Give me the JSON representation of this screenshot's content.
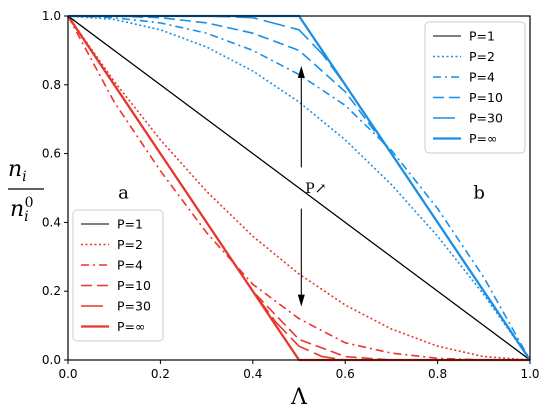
{
  "chart_data": {
    "type": "line",
    "xlabel": "Λ",
    "ylabel_num": "n",
    "ylabel_num_sub": "i",
    "ylabel_den": "n",
    "ylabel_den_sub": "i",
    "ylabel_den_sup": "0",
    "xlim": [
      0,
      1
    ],
    "ylim": [
      0,
      1
    ],
    "x_ticks": [
      "0.0",
      "0.2",
      "0.4",
      "0.6",
      "0.8",
      "1.0"
    ],
    "y_ticks": [
      "0.0",
      "0.2",
      "0.4",
      "0.6",
      "0.8",
      "1.0"
    ],
    "grid": false,
    "panel_labels": [
      "a",
      "b"
    ],
    "annotation": "P↗",
    "colors": {
      "black": "#000000",
      "red": "#e8362b",
      "blue": "#1b8fe6"
    },
    "panels": [
      {
        "id": "a",
        "legend_position": "lower-left",
        "series": [
          {
            "name": "P=1",
            "style": "solid",
            "color": "black",
            "x": [
              0,
              1
            ],
            "y": [
              1,
              0
            ]
          },
          {
            "name": "P=2",
            "style": "dotted",
            "color": "red",
            "x": [
              0,
              0.1,
              0.2,
              0.3,
              0.4,
              0.5,
              0.6,
              0.7,
              0.8,
              0.9,
              1.0
            ],
            "y": [
              1,
              0.81,
              0.64,
              0.49,
              0.36,
              0.25,
              0.16,
              0.09,
              0.04,
              0.01,
              0
            ]
          },
          {
            "name": "P=4",
            "style": "dashdot",
            "color": "red",
            "x": [
              0,
              0.1,
              0.2,
              0.3,
              0.4,
              0.5,
              0.6,
              0.7,
              0.8,
              0.9,
              1.0
            ],
            "y": [
              1,
              0.75,
              0.55,
              0.37,
              0.22,
              0.12,
              0.05,
              0.02,
              0.005,
              0,
              0
            ]
          },
          {
            "name": "P=10",
            "style": "dashed",
            "color": "red",
            "x": [
              0,
              0.1,
              0.2,
              0.3,
              0.4,
              0.5,
              0.6,
              0.7
            ],
            "y": [
              1,
              0.8,
              0.6,
              0.4,
              0.2,
              0.06,
              0.01,
              0
            ]
          },
          {
            "name": "P=30",
            "style": "longdash",
            "color": "red",
            "x": [
              0,
              0.1,
              0.2,
              0.3,
              0.4,
              0.45,
              0.5,
              0.55,
              0.6
            ],
            "y": [
              1,
              0.8,
              0.6,
              0.4,
              0.2,
              0.11,
              0.04,
              0.01,
              0
            ]
          },
          {
            "name": "P=∞",
            "style": "solid-thick",
            "color": "red",
            "x": [
              0,
              0.5,
              1.0
            ],
            "y": [
              1,
              0,
              0
            ]
          }
        ]
      },
      {
        "id": "b",
        "legend_position": "upper-right",
        "series": [
          {
            "name": "P=1",
            "style": "solid",
            "color": "black",
            "x": [
              0,
              1
            ],
            "y": [
              1,
              0
            ]
          },
          {
            "name": "P=2",
            "style": "dotted",
            "color": "blue",
            "x": [
              0,
              0.1,
              0.2,
              0.3,
              0.4,
              0.5,
              0.6,
              0.7,
              0.8,
              0.9,
              1.0
            ],
            "y": [
              1,
              0.99,
              0.96,
              0.91,
              0.84,
              0.75,
              0.64,
              0.51,
              0.36,
              0.19,
              0
            ]
          },
          {
            "name": "P=4",
            "style": "dashdot",
            "color": "blue",
            "x": [
              0,
              0.1,
              0.2,
              0.3,
              0.4,
              0.5,
              0.6,
              0.7,
              0.8,
              0.9,
              1.0
            ],
            "y": [
              1,
              0.995,
              0.98,
              0.95,
              0.9,
              0.83,
              0.74,
              0.61,
              0.44,
              0.24,
              0
            ]
          },
          {
            "name": "P=10",
            "style": "dashed",
            "color": "blue",
            "x": [
              0,
              0.1,
              0.2,
              0.3,
              0.4,
              0.5,
              0.6,
              0.7,
              0.8,
              0.9,
              1.0
            ],
            "y": [
              1,
              1,
              0.995,
              0.98,
              0.95,
              0.9,
              0.78,
              0.6,
              0.4,
              0.2,
              0
            ]
          },
          {
            "name": "P=30",
            "style": "longdash",
            "color": "blue",
            "x": [
              0,
              0.1,
              0.2,
              0.3,
              0.4,
              0.5,
              0.55,
              0.6,
              0.7,
              0.8,
              0.9,
              1.0
            ],
            "y": [
              1,
              1,
              1,
              1,
              0.995,
              0.96,
              0.89,
              0.8,
              0.6,
              0.4,
              0.2,
              0
            ]
          },
          {
            "name": "P=∞",
            "style": "solid-thick",
            "color": "blue",
            "x": [
              0,
              0.5,
              1.0
            ],
            "y": [
              1,
              1,
              0
            ]
          }
        ]
      }
    ]
  }
}
